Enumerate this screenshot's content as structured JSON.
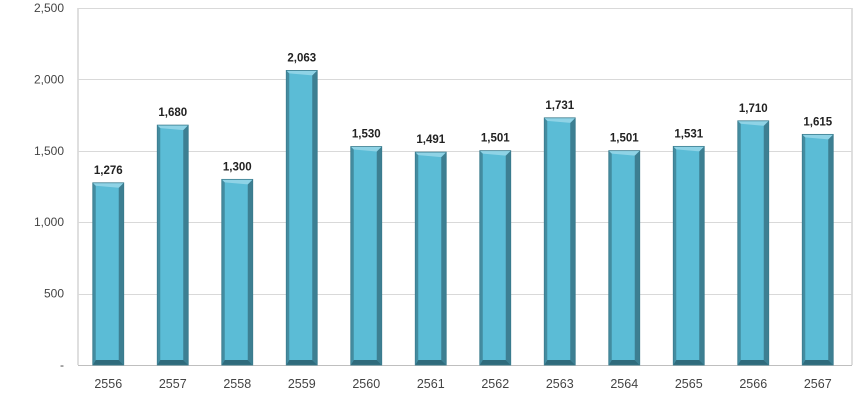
{
  "chart_data": {
    "type": "bar",
    "title": "",
    "xlabel": "",
    "ylabel": "",
    "categories": [
      "2556",
      "2557",
      "2558",
      "2559",
      "2560",
      "2561",
      "2562",
      "2563",
      "2564",
      "2565",
      "2566",
      "2567"
    ],
    "values": [
      1276,
      1680,
      1300,
      2063,
      1530,
      1491,
      1501,
      1731,
      1501,
      1531,
      1710,
      1615
    ],
    "data_labels": [
      "1,276",
      "1,680",
      "1,300",
      "2,063",
      "1,530",
      "1,491",
      "1,501",
      "1,731",
      "1,501",
      "1,531",
      "1,710",
      "1,615"
    ],
    "ylim": [
      0,
      2500
    ],
    "y_ticks": [
      0,
      500,
      1000,
      1500,
      2000,
      2500
    ],
    "y_tick_labels": [
      "-",
      "500",
      "1,000",
      "1,500",
      "2,000",
      "2,500"
    ],
    "grid": true,
    "legend": "none",
    "colors": {
      "bar_front": "#5bbcd6",
      "bar_side": "#3d7f92",
      "bar_top": "#8fd3e6",
      "bar_base": "#2f6b7c",
      "gridline": "#d9d9d9",
      "axis": "#bfbfbf"
    }
  }
}
